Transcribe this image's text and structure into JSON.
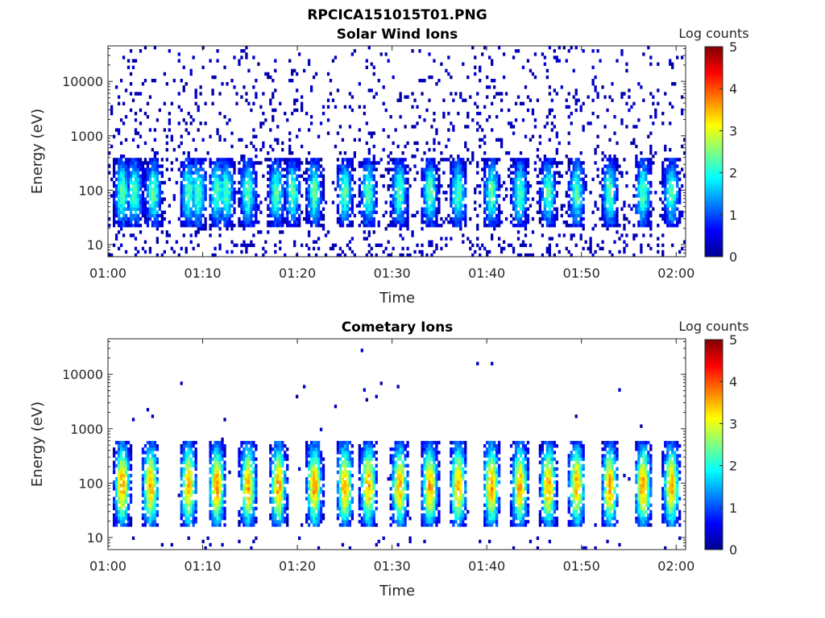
{
  "figure": {
    "title": "RPCICA151015T01.PNG"
  },
  "colorbar": {
    "label": "Log counts",
    "ticks": [
      "0",
      "1",
      "2",
      "3",
      "4",
      "5"
    ],
    "range": [
      0,
      5
    ],
    "colormap": "jet"
  },
  "chart_data": [
    {
      "type": "heatmap",
      "title": "Solar Wind Ions",
      "xlabel": "Time",
      "ylabel": "Energy (eV)",
      "x_ticks": [
        "01:00",
        "01:10",
        "01:20",
        "01:30",
        "01:40",
        "01:50",
        "02:00"
      ],
      "x_tick_minutes": [
        0,
        10,
        20,
        30,
        40,
        50,
        60
      ],
      "xlim_minutes": [
        0,
        61
      ],
      "y_ticks": [
        "10",
        "100",
        "1000",
        "10000"
      ],
      "y_tick_values": [
        10,
        100,
        1000,
        10000
      ],
      "ylim": [
        6,
        45000
      ],
      "yscale": "log",
      "background_events": "sparse",
      "bursts_minutes": [
        1.5,
        2.8,
        4.8,
        8.5,
        9.5,
        11.5,
        12.5,
        14.8,
        17.8,
        19.5,
        21.8,
        25,
        27.5,
        30.8,
        34,
        37,
        40.5,
        43.5,
        46.5,
        49.5,
        53,
        56.5,
        59.5
      ],
      "burst_peak_log_counts": 2.3,
      "burst_energy_range_eV": [
        20,
        400
      ]
    },
    {
      "type": "heatmap",
      "title": "Cometary Ions",
      "xlabel": "Time",
      "ylabel": "Energy (eV)",
      "x_ticks": [
        "01:00",
        "01:10",
        "01:20",
        "01:30",
        "01:40",
        "01:50",
        "02:00"
      ],
      "x_tick_minutes": [
        0,
        10,
        20,
        30,
        40,
        50,
        60
      ],
      "xlim_minutes": [
        0,
        61
      ],
      "y_ticks": [
        "10",
        "100",
        "1000",
        "10000"
      ],
      "y_tick_values": [
        10,
        100,
        1000,
        10000
      ],
      "ylim": [
        6,
        45000
      ],
      "yscale": "log",
      "background_events": "very sparse",
      "bursts_minutes": [
        1.5,
        4.5,
        8.5,
        11.5,
        14.8,
        18,
        21.8,
        25,
        27.5,
        30.8,
        34,
        37,
        40.5,
        43.5,
        46.5,
        49.5,
        53,
        56.5,
        59.5
      ],
      "burst_peak_log_counts": 3.6,
      "burst_energy_range_eV": [
        15,
        600
      ]
    }
  ]
}
